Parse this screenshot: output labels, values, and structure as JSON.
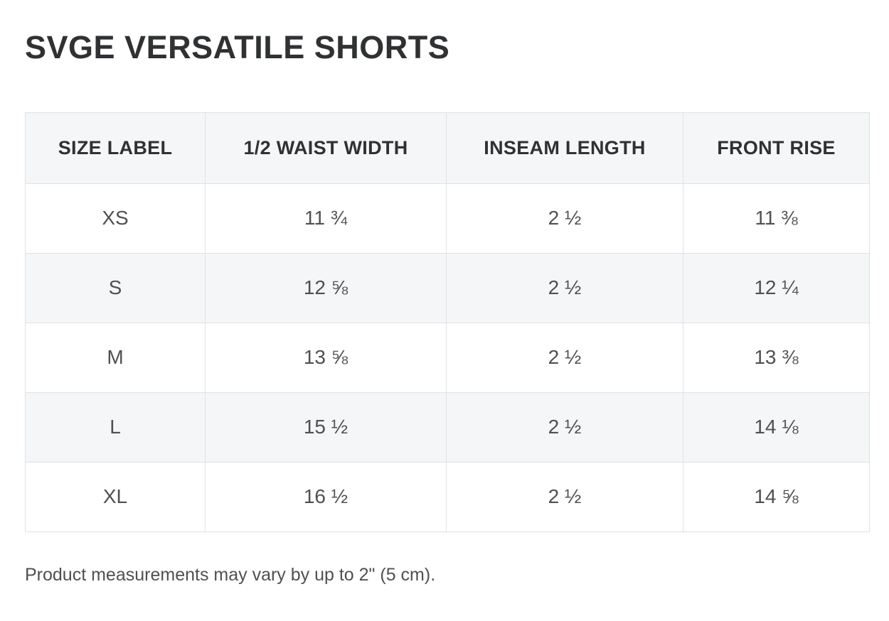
{
  "page": {
    "title": "SVGE VERSATILE SHORTS",
    "footnote": "Product measurements may vary by up to 2\" (5 cm)."
  },
  "colors": {
    "title_text": "#2f3133",
    "header_bg": "#f5f6f8",
    "stripe_bg": "#f5f6f8",
    "border": "#dfe2e7",
    "cell_text": "#4e5052"
  },
  "chart_data": {
    "type": "table",
    "title": "SVGE VERSATILE SHORTS",
    "columns": [
      "SIZE LABEL",
      "1/2 WAIST WIDTH",
      "INSEAM LENGTH",
      "FRONT RISE"
    ],
    "rows": [
      [
        "XS",
        "11 ¾",
        "2 ½",
        "11 ⅜"
      ],
      [
        "S",
        "12 ⅝",
        "2 ½",
        "12 ¼"
      ],
      [
        "M",
        "13 ⅝",
        "2 ½",
        "13 ⅜"
      ],
      [
        "L",
        "15 ½",
        "2 ½",
        "14 ⅛"
      ],
      [
        "XL",
        "16 ½",
        "2 ½",
        "14 ⅝"
      ]
    ],
    "footnote": "Product measurements may vary by up to 2\" (5 cm).",
    "layout": {
      "striped_rows": [
        1,
        3
      ],
      "header_shaded": true,
      "grid": true
    }
  }
}
